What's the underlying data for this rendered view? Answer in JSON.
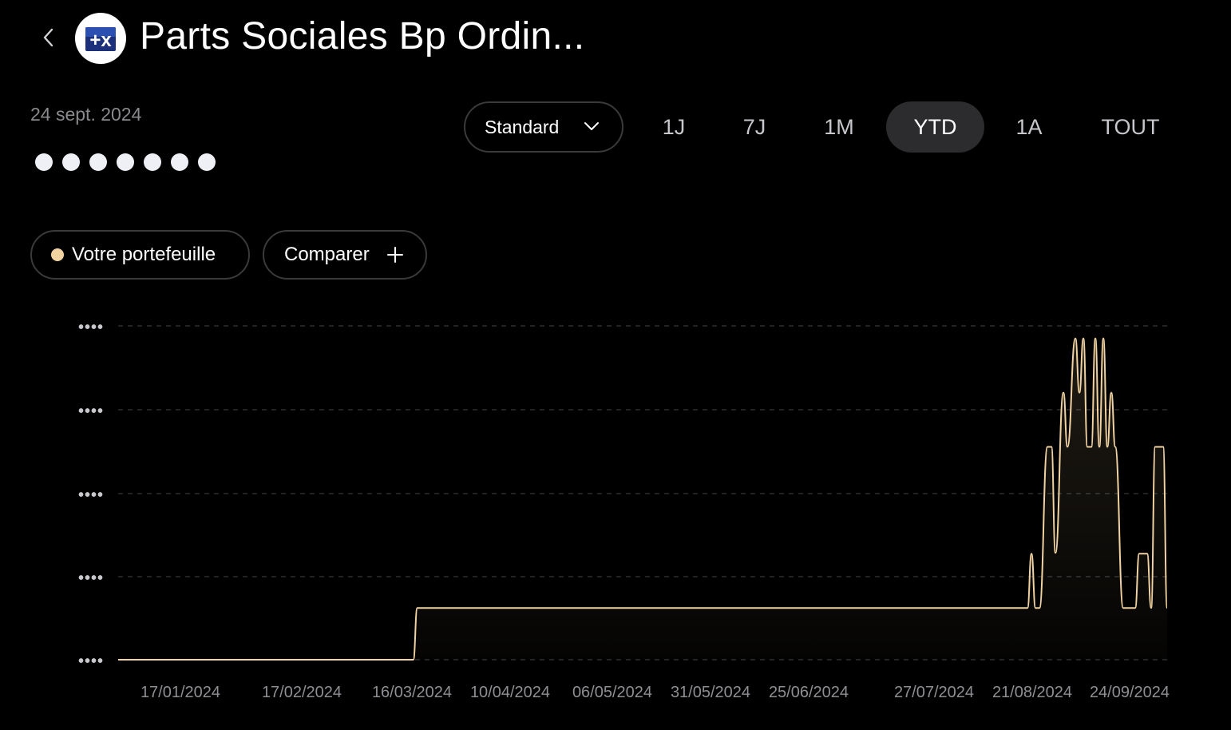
{
  "header": {
    "title": "Parts Sociales Bp Ordin...",
    "logo_text": "+x"
  },
  "summary": {
    "date": "24 sept. 2024",
    "masked_value_dots": 7
  },
  "controls": {
    "view_mode": "Standard",
    "ranges": [
      "1J",
      "7J",
      "1M",
      "YTD",
      "1A",
      "TOUT"
    ],
    "active_range": "YTD"
  },
  "chips": {
    "portfolio": "Votre portefeuille",
    "compare": "Comparer"
  },
  "colors": {
    "series": "#f1d3a2",
    "background": "#000000",
    "grid": "#2e2e30",
    "active_tab_bg": "#2c2c2e"
  },
  "chart_data": {
    "type": "line",
    "title": "",
    "series": [
      {
        "name": "Votre portefeuille",
        "color": "#f1d3a2"
      }
    ],
    "x_tick_labels": [
      "17/01/2024",
      "17/02/2024",
      "16/03/2024",
      "10/04/2024",
      "06/05/2024",
      "31/05/2024",
      "25/06/2024",
      "27/07/2024",
      "21/08/2024",
      "24/09/2024"
    ],
    "y_tick_labels": [
      "••••",
      "••••",
      "••••",
      "••••",
      "••••"
    ],
    "y_values_hidden": true,
    "grid": "horizontal dashed",
    "level_note": "Values hidden; line shown as relative level 0 (bottom gridline) to 4 (top gridline)",
    "points": [
      [
        "2024-01-01",
        0.0
      ],
      [
        "2024-03-15",
        0.0
      ],
      [
        "2024-03-16",
        0.62
      ],
      [
        "2024-08-16",
        0.62
      ],
      [
        "2024-08-17",
        1.27
      ],
      [
        "2024-08-18",
        0.62
      ],
      [
        "2024-08-19",
        0.62
      ],
      [
        "2024-08-21",
        2.55
      ],
      [
        "2024-08-22",
        2.55
      ],
      [
        "2024-08-23",
        1.28
      ],
      [
        "2024-08-25",
        3.2
      ],
      [
        "2024-08-26",
        2.55
      ],
      [
        "2024-08-28",
        3.85
      ],
      [
        "2024-08-29",
        3.2
      ],
      [
        "2024-08-30",
        3.85
      ],
      [
        "2024-08-31",
        2.55
      ],
      [
        "2024-09-01",
        2.55
      ],
      [
        "2024-09-02",
        3.85
      ],
      [
        "2024-09-03",
        2.55
      ],
      [
        "2024-09-04",
        3.85
      ],
      [
        "2024-09-05",
        2.55
      ],
      [
        "2024-09-06",
        3.2
      ],
      [
        "2024-09-07",
        2.55
      ],
      [
        "2024-09-09",
        0.62
      ],
      [
        "2024-09-12",
        0.62
      ],
      [
        "2024-09-13",
        1.27
      ],
      [
        "2024-09-15",
        1.27
      ],
      [
        "2024-09-16",
        0.62
      ],
      [
        "2024-09-17",
        2.55
      ],
      [
        "2024-09-19",
        2.55
      ],
      [
        "2024-09-20",
        0.62
      ]
    ]
  }
}
